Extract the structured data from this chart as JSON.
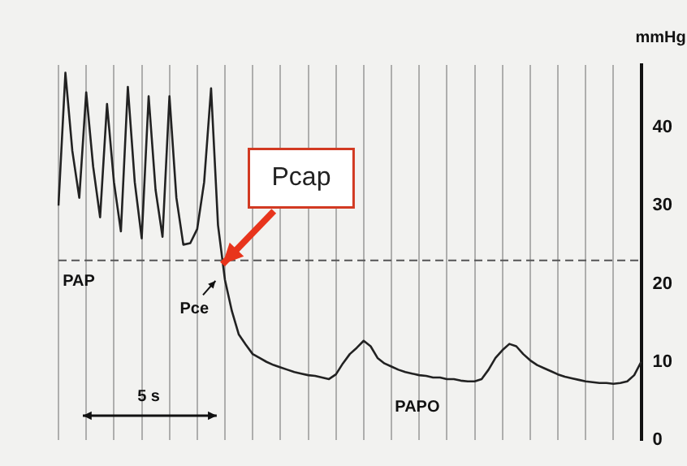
{
  "chart_data": {
    "type": "line",
    "ylabel": "mmHg",
    "categories": [
      null,
      null,
      null,
      null,
      null,
      null,
      null,
      null,
      null,
      null,
      null,
      null,
      null,
      null,
      null,
      null,
      null,
      null,
      null,
      null,
      null,
      null,
      null,
      null,
      null,
      null,
      null,
      null,
      null,
      null,
      null,
      null,
      null,
      null,
      null,
      null,
      null,
      null,
      null,
      null,
      null,
      null,
      null,
      null,
      null,
      null,
      null,
      null,
      null,
      null,
      null,
      null,
      null,
      null,
      null,
      null,
      null,
      null,
      null,
      null,
      null,
      null,
      null,
      null,
      null,
      null,
      null,
      null,
      null,
      null,
      null,
      null,
      null,
      null,
      null,
      null,
      null,
      null,
      null,
      null,
      null,
      null,
      null,
      null,
      null
    ],
    "series": [
      {
        "color": "#222222",
        "values": [
          30,
          47,
          37,
          31,
          44.5,
          35,
          28.5,
          43,
          33,
          26.7,
          45.2,
          33,
          25.8,
          44,
          32,
          26,
          44,
          31,
          25,
          25.2,
          27,
          33,
          45,
          27.5,
          20.5,
          16.5,
          13.5,
          12.2,
          11,
          10.5,
          10,
          9.6,
          9.3,
          9,
          8.7,
          8.5,
          8.3,
          8.2,
          8,
          7.8,
          8.4,
          9.8,
          11,
          11.8,
          12.7,
          12,
          10.5,
          9.8,
          9.4,
          9,
          8.7,
          8.5,
          8.3,
          8.2,
          8,
          8,
          7.8,
          7.8,
          7.6,
          7.5,
          7.5,
          7.8,
          9,
          10.5,
          11.5,
          12.3,
          12,
          11,
          10.2,
          9.6,
          9.2,
          8.8,
          8.4,
          8.1,
          7.9,
          7.7,
          7.5,
          7.4,
          7.3,
          7.3,
          7.2,
          7.3,
          7.5,
          8.3,
          10
        ]
      }
    ],
    "ylim": [
      0,
      48
    ],
    "yticks": [
      0,
      10,
      20,
      30,
      40
    ],
    "grid": "x",
    "tick_labels": "y",
    "marker": "none",
    "line_style": "solid",
    "ref_lines": [
      {
        "axis": "y",
        "value": 23,
        "line_style": "dashed",
        "color": "#555555"
      }
    ],
    "annotations": [
      "PAP",
      "Pce",
      "PAPO",
      "5 s",
      "Pcap"
    ]
  }
}
